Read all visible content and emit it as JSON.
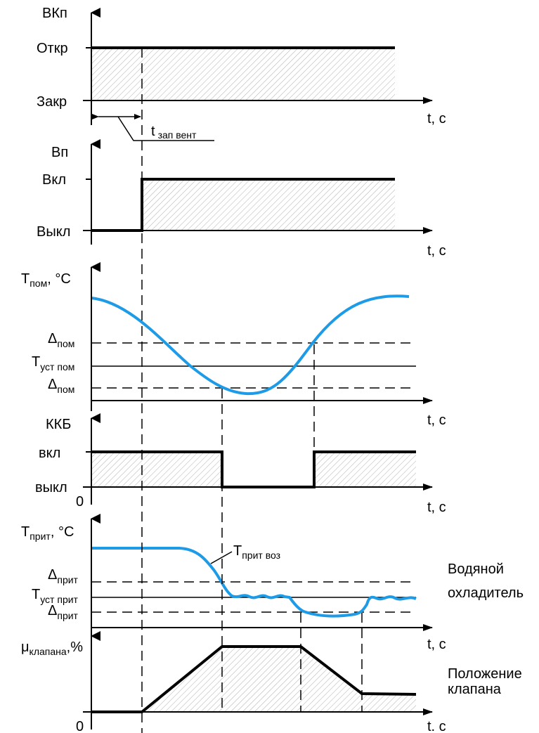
{
  "panels": {
    "valve": {
      "axis_label": "ВКп",
      "high_label": "Откр",
      "low_label": "Закр",
      "time_label": "t, с",
      "delay_label": {
        "main": "t",
        "sub": "зап вент"
      }
    },
    "fan": {
      "axis_label": "Вп",
      "high_label": "Вкл",
      "low_label": "Выкл",
      "time_label": "t, с"
    },
    "room": {
      "axis_label": {
        "main": "T",
        "sub": "пом",
        "suffix": ", °С"
      },
      "upper_label": {
        "main": "Δ",
        "sub": "пом"
      },
      "setpoint_label": {
        "main": "T",
        "sub": "уст пом"
      },
      "lower_label": {
        "main": "Δ",
        "sub": "пом"
      },
      "time_label": "t, с"
    },
    "compressor": {
      "axis_label": "ККБ",
      "high_label": "вкл",
      "low_label": "выкл",
      "origin_label": "0",
      "time_label": "t, с"
    },
    "supply": {
      "axis_label": {
        "main": "T",
        "sub": "прит",
        "suffix": ", °С"
      },
      "curve_label": {
        "main": "T",
        "sub": "прит воз"
      },
      "upper_label": {
        "main": "Δ",
        "sub": "прит"
      },
      "setpoint_label": {
        "main": "T",
        "sub": "уст прит"
      },
      "lower_label": {
        "main": "Δ",
        "sub": "прит"
      },
      "time_label": "t, с",
      "note_lines": [
        "Водяной",
        "охладитель"
      ]
    },
    "valve_position": {
      "axis_label": {
        "main": "μ",
        "sub": "клапана",
        "suffix": ",%"
      },
      "origin_label": "0",
      "time_label": "t. с",
      "note_lines": [
        "Положение",
        "клапана"
      ]
    }
  },
  "colors": {
    "signal": "#000000",
    "temperature_curve": "#1e9be6",
    "hatch": "#9a9a9a"
  }
}
